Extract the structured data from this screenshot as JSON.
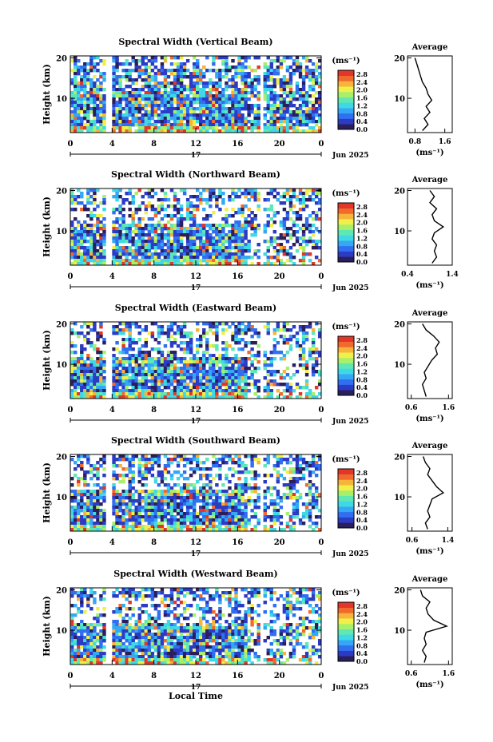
{
  "figure": {
    "date_label": "Jun 2025",
    "x_axis_title": "Local Time"
  },
  "colors": {
    "scale": [
      "#2a1f5a",
      "#2b3bc4",
      "#2f6ff0",
      "#35a8f5",
      "#3fd9e6",
      "#60e8b4",
      "#a9ef6a",
      "#f1f04a",
      "#f7b43a",
      "#f06a2e",
      "#e23628"
    ],
    "missing": "#ffffff"
  },
  "chart_data": [
    {
      "type": "heatmap",
      "title": "Spectral Width (Vertical Beam)",
      "xlabel": "",
      "ylabel": "Height (km)",
      "x_ticks": [
        "0",
        "4",
        "8",
        "12",
        "16",
        "20",
        "0"
      ],
      "xlim": [
        0,
        24
      ],
      "y_ticks": [
        "20",
        "10"
      ],
      "ylim": [
        1.5,
        20.5
      ],
      "day_label": "17",
      "colorbar": {
        "unit_label": "(ms⁻¹)",
        "tick_labels": [
          "2.8",
          "2.4",
          "2.0",
          "1.6",
          "1.2",
          "0.8",
          "0.4",
          "0.0"
        ],
        "range": [
          0.0,
          3.0
        ]
      },
      "profile": {
        "title": "Average",
        "xlabel": "(ms⁻¹)",
        "x_ticks": [
          "0.8",
          "1.6"
        ],
        "xlim": [
          0.6,
          1.8
        ],
        "y_ticks": [
          "20",
          "10"
        ],
        "ylim": [
          1.5,
          20.5
        ],
        "heights": [
          2.0,
          3.5,
          5.0,
          6.5,
          8.0,
          9.5,
          11.0,
          12.5,
          14.0,
          15.5,
          17.0,
          18.5,
          20.0
        ],
        "values": [
          1.0,
          1.15,
          1.05,
          1.2,
          1.1,
          1.25,
          1.15,
          1.1,
          1.0,
          0.95,
          0.9,
          0.85,
          0.8
        ]
      }
    },
    {
      "type": "heatmap",
      "title": "Spectral Width (Northward Beam)",
      "xlabel": "",
      "ylabel": "Height (km)",
      "x_ticks": [
        "0",
        "4",
        "8",
        "12",
        "16",
        "20",
        "0"
      ],
      "xlim": [
        0,
        24
      ],
      "y_ticks": [
        "20",
        "10"
      ],
      "ylim": [
        1.5,
        20.5
      ],
      "day_label": "17",
      "colorbar": {
        "unit_label": "(ms⁻¹)",
        "tick_labels": [
          "2.8",
          "2.4",
          "2.0",
          "1.6",
          "1.2",
          "0.8",
          "0.4",
          "0.0"
        ],
        "range": [
          0.0,
          3.0
        ]
      },
      "profile": {
        "title": "Average",
        "xlabel": "(ms⁻¹)",
        "x_ticks": [
          "0.4",
          "1.4"
        ],
        "xlim": [
          0.4,
          1.4
        ],
        "y_ticks": [
          "20",
          "10"
        ],
        "ylim": [
          1.5,
          20.5
        ],
        "heights": [
          2.0,
          3.5,
          5.0,
          6.5,
          8.0,
          9.5,
          11.0,
          12.5,
          14.0,
          15.5,
          17.0,
          18.5,
          20.0
        ],
        "values": [
          0.95,
          1.05,
          1.0,
          1.05,
          0.95,
          1.0,
          1.2,
          1.0,
          0.95,
          1.05,
          0.9,
          1.0,
          0.9
        ]
      }
    },
    {
      "type": "heatmap",
      "title": "Spectral Width (Eastward Beam)",
      "xlabel": "",
      "ylabel": "Height (km)",
      "x_ticks": [
        "0",
        "4",
        "8",
        "12",
        "16",
        "20",
        "0"
      ],
      "xlim": [
        0,
        24
      ],
      "y_ticks": [
        "20",
        "10"
      ],
      "ylim": [
        1.5,
        20.5
      ],
      "day_label": "17",
      "colorbar": {
        "unit_label": "(ms⁻¹)",
        "tick_labels": [
          "2.8",
          "2.4",
          "2.0",
          "1.6",
          "1.2",
          "0.8",
          "0.4",
          "0.0"
        ],
        "range": [
          0.0,
          3.0
        ]
      },
      "profile": {
        "title": "Average",
        "xlabel": "(ms⁻¹)",
        "x_ticks": [
          "0.6",
          "1.6"
        ],
        "xlim": [
          0.5,
          1.7
        ],
        "y_ticks": [
          "20",
          "10"
        ],
        "ylim": [
          1.5,
          20.5
        ],
        "heights": [
          2.0,
          3.5,
          5.0,
          6.5,
          8.0,
          9.5,
          11.0,
          12.5,
          14.0,
          15.5,
          17.0,
          18.5,
          20.0
        ],
        "values": [
          1.0,
          0.95,
          0.9,
          1.0,
          0.95,
          1.05,
          1.15,
          1.3,
          1.25,
          1.35,
          1.2,
          1.0,
          0.9
        ]
      }
    },
    {
      "type": "heatmap",
      "title": "Spectral Width (Southward Beam)",
      "xlabel": "",
      "ylabel": "Height (km)",
      "x_ticks": [
        "0",
        "4",
        "8",
        "12",
        "16",
        "20",
        "0"
      ],
      "xlim": [
        0,
        24
      ],
      "y_ticks": [
        "20",
        "10"
      ],
      "ylim": [
        1.5,
        20.5
      ],
      "day_label": "17",
      "colorbar": {
        "unit_label": "(ms⁻¹)",
        "tick_labels": [
          "2.8",
          "2.4",
          "2.0",
          "1.6",
          "1.2",
          "0.8",
          "0.4",
          "0.0"
        ],
        "range": [
          0.0,
          3.0
        ]
      },
      "profile": {
        "title": "Average",
        "xlabel": "(ms⁻¹)",
        "x_ticks": [
          "0.6",
          "1.4"
        ],
        "xlim": [
          0.5,
          1.5
        ],
        "y_ticks": [
          "20",
          "10"
        ],
        "ylim": [
          1.5,
          20.5
        ],
        "heights": [
          2.0,
          3.5,
          5.0,
          6.5,
          8.0,
          9.5,
          11.0,
          12.5,
          14.0,
          15.5,
          17.0,
          18.5,
          20.0
        ],
        "values": [
          0.95,
          0.9,
          1.0,
          0.95,
          1.0,
          1.05,
          1.3,
          1.15,
          1.05,
          0.95,
          1.0,
          0.9,
          0.85
        ]
      }
    },
    {
      "type": "heatmap",
      "title": "Spectral Width (Westward Beam)",
      "xlabel": "Local Time",
      "ylabel": "Height (km)",
      "x_ticks": [
        "0",
        "4",
        "8",
        "12",
        "16",
        "20",
        "0"
      ],
      "xlim": [
        0,
        24
      ],
      "y_ticks": [
        "20",
        "10"
      ],
      "ylim": [
        1.5,
        20.5
      ],
      "day_label": "17",
      "colorbar": {
        "unit_label": "(ms⁻¹)",
        "tick_labels": [
          "2.8",
          "2.4",
          "2.0",
          "1.6",
          "1.2",
          "0.8",
          "0.4",
          "0.0"
        ],
        "range": [
          0.0,
          3.0
        ]
      },
      "profile": {
        "title": "Average",
        "xlabel": "(ms⁻¹)",
        "x_ticks": [
          "0.6",
          "1.6"
        ],
        "xlim": [
          0.5,
          1.7
        ],
        "y_ticks": [
          "20",
          "10"
        ],
        "ylim": [
          1.5,
          20.5
        ],
        "heights": [
          2.0,
          3.5,
          5.0,
          6.5,
          8.0,
          9.5,
          11.0,
          12.5,
          14.0,
          15.5,
          17.0,
          18.5,
          20.0
        ],
        "values": [
          0.95,
          1.0,
          0.9,
          1.0,
          0.95,
          1.0,
          1.55,
          1.2,
          1.05,
          1.0,
          1.1,
          0.9,
          0.85
        ]
      }
    }
  ]
}
